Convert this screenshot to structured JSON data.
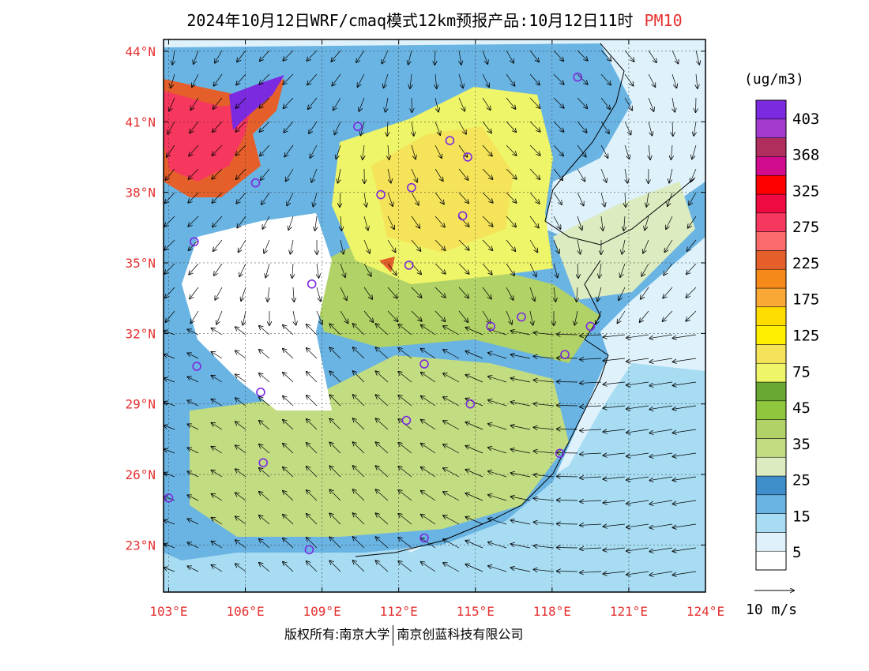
{
  "title": {
    "main": "2024年10月12日WRF/cmaq模式12km预报产品:10月12日11时",
    "variable": "PM10"
  },
  "lat_labels": [
    "44°N",
    "41°N",
    "38°N",
    "35°N",
    "32°N",
    "29°N",
    "26°N",
    "23°N"
  ],
  "lat_values": [
    44,
    41,
    38,
    35,
    32,
    29,
    26,
    23
  ],
  "lon_labels": [
    "103°E",
    "106°E",
    "109°E",
    "112°E",
    "115°E",
    "118°E",
    "121°E",
    "124°E"
  ],
  "lon_values": [
    103,
    106,
    109,
    112,
    115,
    118,
    121,
    124
  ],
  "map_extent": {
    "lon_min": 102.8,
    "lon_max": 124.0,
    "lat_min": 21.0,
    "lat_max": 44.5
  },
  "colorbar": {
    "unit": "(ug/m3)",
    "colors": [
      "#ffffff",
      "#dff2fb",
      "#a7dcf3",
      "#6ab4e3",
      "#3f8fcb",
      "#dcebc0",
      "#c2dc82",
      "#b0d266",
      "#8ec73e",
      "#69a832",
      "#eef569",
      "#f5e45a",
      "#ffef00",
      "#ffdc00",
      "#f9a836",
      "#f58a1a",
      "#e45f2a",
      "#fb6b6b",
      "#f7385e",
      "#ef0a42",
      "#ff0000",
      "#d10c8c",
      "#b02e5e",
      "#a43ad0",
      "#7c2ae0"
    ],
    "labels": [
      "5",
      "15",
      "25",
      "35",
      "45",
      "75",
      "125",
      "175",
      "225",
      "275",
      "325",
      "368",
      "403"
    ]
  },
  "wind_reference": {
    "label": "10 m/s"
  },
  "cities": [
    {
      "lon": 119.0,
      "lat": 42.9
    },
    {
      "lon": 110.4,
      "lat": 40.8
    },
    {
      "lon": 114.0,
      "lat": 40.2
    },
    {
      "lon": 114.7,
      "lat": 39.5
    },
    {
      "lon": 106.4,
      "lat": 38.4
    },
    {
      "lon": 111.3,
      "lat": 37.9
    },
    {
      "lon": 112.5,
      "lat": 38.2
    },
    {
      "lon": 114.5,
      "lat": 37.0
    },
    {
      "lon": 104.0,
      "lat": 35.9
    },
    {
      "lon": 112.4,
      "lat": 34.9
    },
    {
      "lon": 108.6,
      "lat": 34.1
    },
    {
      "lon": 116.8,
      "lat": 32.7
    },
    {
      "lon": 115.6,
      "lat": 32.3
    },
    {
      "lon": 119.5,
      "lat": 32.3
    },
    {
      "lon": 118.5,
      "lat": 31.1
    },
    {
      "lon": 104.1,
      "lat": 30.6
    },
    {
      "lon": 113.0,
      "lat": 30.7
    },
    {
      "lon": 106.6,
      "lat": 29.5
    },
    {
      "lon": 114.8,
      "lat": 29.0
    },
    {
      "lon": 112.3,
      "lat": 28.3
    },
    {
      "lon": 106.7,
      "lat": 26.5
    },
    {
      "lon": 118.3,
      "lat": 26.9
    },
    {
      "lon": 103.0,
      "lat": 25.0
    },
    {
      "lon": 108.5,
      "lat": 22.8
    },
    {
      "lon": 113.0,
      "lat": 23.3
    }
  ],
  "copyright": {
    "left": "版权所有:南京大学",
    "right": "南京创蓝科技有限公司"
  }
}
